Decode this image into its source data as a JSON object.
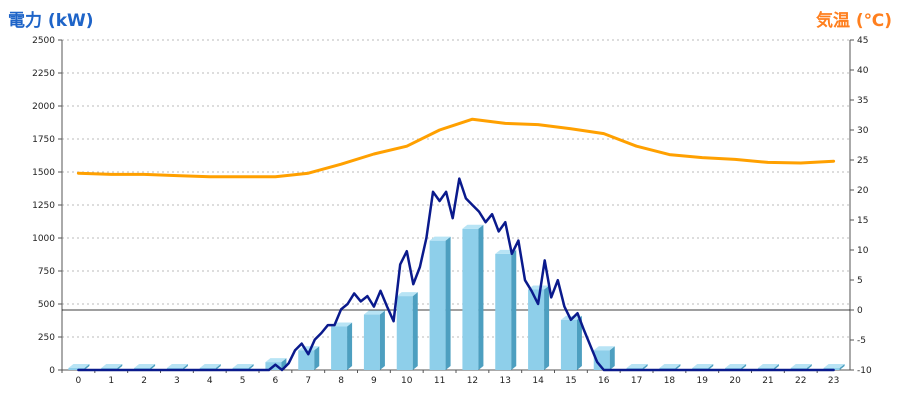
{
  "chart_data": {
    "type": "bar",
    "left_axis_title": "電力 (kW)",
    "right_axis_title": "気温 (℃)",
    "left_ylim": [
      0,
      2500
    ],
    "left_ticks": [
      "0",
      "250",
      "500",
      "750",
      "1000",
      "1250",
      "1500",
      "1750",
      "2000",
      "2250",
      "2500"
    ],
    "right_ylim": [
      -10,
      45
    ],
    "right_ticks": [
      "-10",
      "-5",
      "0",
      "5",
      "10",
      "15",
      "20",
      "25",
      "30",
      "35",
      "40",
      "45"
    ],
    "categories": [
      "0",
      "1",
      "2",
      "3",
      "4",
      "5",
      "6",
      "7",
      "8",
      "9",
      "10",
      "11",
      "12",
      "13",
      "14",
      "15",
      "16",
      "17",
      "18",
      "19",
      "20",
      "21",
      "22",
      "23"
    ],
    "grid": "horizontal dashed",
    "colors": {
      "bars": "#8ecfea",
      "bar_side": "#4d9fc0",
      "bar_top": "#b8e4f5",
      "power_line": "#0a1a8c",
      "temperature_line": "#ffa000",
      "left_title": "#1e64c8",
      "right_title": "#ff7f1e"
    },
    "series": [
      {
        "kind": "bar",
        "axis": "left",
        "values": [
          0,
          0,
          0,
          0,
          0,
          0,
          60,
          150,
          330,
          420,
          560,
          980,
          1070,
          880,
          610,
          380,
          150,
          0,
          0,
          0,
          0,
          0,
          0,
          0
        ]
      },
      {
        "kind": "line",
        "axis": "left",
        "x": [
          0,
          0.5,
          1,
          1.5,
          2,
          2.5,
          3,
          3.5,
          4,
          4.5,
          5,
          5.5,
          5.8,
          6,
          6.2,
          6.4,
          6.6,
          6.8,
          7,
          7.2,
          7.4,
          7.6,
          7.8,
          8,
          8.2,
          8.4,
          8.6,
          8.8,
          9,
          9.2,
          9.4,
          9.6,
          9.8,
          10,
          10.2,
          10.4,
          10.6,
          10.8,
          11,
          11.2,
          11.4,
          11.6,
          11.8,
          12,
          12.2,
          12.4,
          12.6,
          12.8,
          13,
          13.2,
          13.4,
          13.6,
          13.8,
          14,
          14.2,
          14.4,
          14.6,
          14.8,
          15,
          15.2,
          15.4,
          15.6,
          15.8,
          16,
          16.2,
          16.4,
          16.6,
          17,
          18,
          19,
          20,
          21,
          22,
          23
        ],
        "values": [
          0,
          0,
          0,
          0,
          0,
          0,
          0,
          0,
          0,
          0,
          0,
          0,
          0,
          40,
          0,
          50,
          150,
          200,
          120,
          230,
          280,
          340,
          340,
          460,
          500,
          580,
          520,
          560,
          480,
          600,
          480,
          370,
          800,
          900,
          650,
          780,
          1000,
          1350,
          1280,
          1350,
          1150,
          1450,
          1300,
          1250,
          1200,
          1120,
          1180,
          1050,
          1120,
          880,
          980,
          680,
          600,
          500,
          830,
          550,
          680,
          480,
          380,
          430,
          300,
          180,
          60,
          0,
          0,
          0,
          0,
          0,
          0,
          0,
          0,
          0,
          0,
          0
        ]
      },
      {
        "kind": "line",
        "axis": "right",
        "x": [
          0,
          1,
          2,
          3,
          4,
          5,
          6,
          7,
          8,
          9,
          10,
          11,
          12,
          13,
          14,
          15,
          16,
          17,
          18,
          19,
          20,
          21,
          22,
          23
        ],
        "values": [
          22.8,
          22.6,
          22.6,
          22.4,
          22.2,
          22.2,
          22.2,
          22.8,
          24.3,
          26,
          27.3,
          30,
          31.8,
          31.1,
          30.9,
          30.2,
          29.4,
          27.3,
          25.9,
          25.4,
          25.1,
          24.6,
          24.5,
          24.8
        ]
      }
    ]
  }
}
